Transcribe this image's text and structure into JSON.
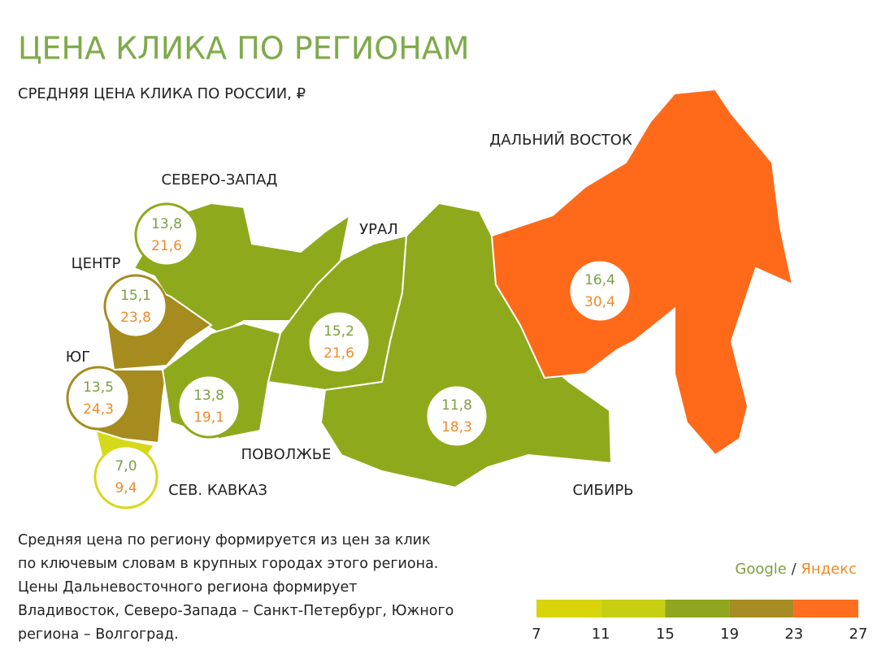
{
  "title": "ЦЕНА КЛИКА ПО РЕГИОНАМ",
  "subtitle": "СРЕДНЯЯ ЦЕНА КЛИКА ПО РОССИИ, ₽",
  "regions": [
    {
      "name": "СЕВЕРО-ЗАПАД",
      "google": "13,8",
      "yandex": "21,6",
      "color": "#8fa91c"
    },
    {
      "name": "ЦЕНТР",
      "google": "15,1",
      "yandex": "23,8",
      "color": "#a68b1f"
    },
    {
      "name": "ЮГ",
      "google": "13,5",
      "yandex": "24,3",
      "color": "#a68b1f"
    },
    {
      "name": "СЕВ. КАВКАЗ",
      "google": "7,0",
      "yandex": "9,4",
      "color": "#d6d81a"
    },
    {
      "name": "ПОВОЛЖЬЕ",
      "google": "13,8",
      "yandex": "19,1",
      "color": "#8fa91c"
    },
    {
      "name": "УРАЛ",
      "google": "15,2",
      "yandex": "21,6",
      "color": "#8fa91c"
    },
    {
      "name": "СИБИРЬ",
      "google": "11,8",
      "yandex": "18,3",
      "color": "#8fa91c"
    },
    {
      "name": "ДАЛЬНИЙ ВОСТОК",
      "google": "16,4",
      "yandex": "30,4",
      "color": "#ff6a1a"
    }
  ],
  "note": [
    "Средняя цена по региону формируется из цен за клик",
    "по ключевым словам в крупных городах этого региона.",
    "Цены Дальневосточного региона формирует",
    "Владивосток, Северо-Запада – Санкт-Петербург, Южного",
    "региона – Волгоград."
  ],
  "legend": {
    "google": "Google",
    "separator": "/",
    "yandex": "Яндекс",
    "google_color": "#7aa040",
    "yandex_color": "#f08a2a"
  },
  "scale": {
    "ticks": [
      7,
      11,
      15,
      19,
      23,
      27
    ],
    "colors": [
      "#d9d40a",
      "#c7cf14",
      "#8fa61e",
      "#a68c22",
      "#ff6d1e"
    ]
  }
}
